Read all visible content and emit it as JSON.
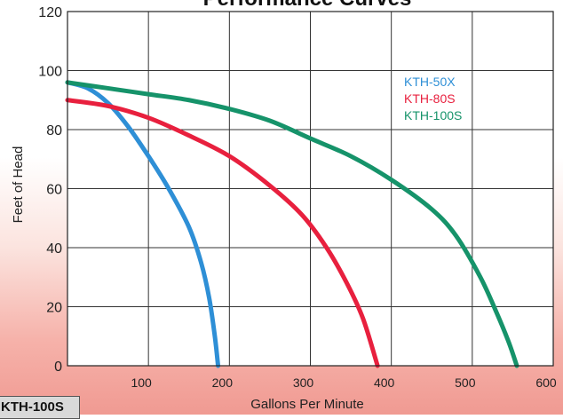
{
  "chart_data": {
    "type": "line",
    "title": "Performance Curves",
    "xlabel": "Gallons Per Minute",
    "ylabel": "Feet of Head",
    "xlim": [
      0,
      600
    ],
    "ylim": [
      0,
      120
    ],
    "x_ticks": [
      100,
      200,
      300,
      400,
      500,
      600
    ],
    "y_ticks": [
      0,
      20,
      40,
      60,
      80,
      100,
      120
    ],
    "grid": true,
    "legend_position": "top-right",
    "series": [
      {
        "name": "KTH-50X",
        "color": "#2e8fd6",
        "points": [
          [
            0,
            96
          ],
          [
            25,
            94
          ],
          [
            50,
            89
          ],
          [
            75,
            81
          ],
          [
            100,
            71
          ],
          [
            125,
            60
          ],
          [
            150,
            47
          ],
          [
            165,
            35
          ],
          [
            175,
            23
          ],
          [
            182,
            10
          ],
          [
            186,
            0
          ]
        ]
      },
      {
        "name": "KTH-80S",
        "color": "#e8203e",
        "points": [
          [
            0,
            90
          ],
          [
            50,
            88
          ],
          [
            100,
            84
          ],
          [
            150,
            78
          ],
          [
            200,
            71
          ],
          [
            250,
            61
          ],
          [
            290,
            51
          ],
          [
            320,
            40
          ],
          [
            345,
            28
          ],
          [
            365,
            16
          ],
          [
            383,
            0
          ]
        ]
      },
      {
        "name": "KTH-100S",
        "color": "#16936a",
        "points": [
          [
            0,
            96
          ],
          [
            50,
            94
          ],
          [
            100,
            92
          ],
          [
            150,
            90
          ],
          [
            200,
            87
          ],
          [
            250,
            83
          ],
          [
            300,
            77
          ],
          [
            350,
            71
          ],
          [
            400,
            63
          ],
          [
            450,
            53
          ],
          [
            480,
            44
          ],
          [
            510,
            30
          ],
          [
            530,
            18
          ],
          [
            545,
            8
          ],
          [
            555,
            0
          ]
        ]
      }
    ]
  },
  "corner_tag": "KTH-100S"
}
